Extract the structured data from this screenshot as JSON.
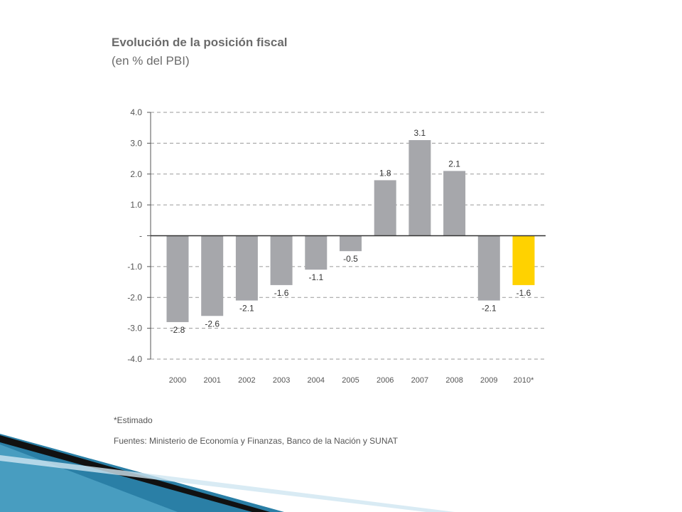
{
  "title": "Evolución de la posición fiscal",
  "subtitle": "(en % del PBI)",
  "note": "*Estimado",
  "source": "Fuentes: Ministerio de Economía y Finanzas, Banco de la Nación y SUNAT",
  "colors": {
    "bar": "#a6a7ab",
    "highlight": "#ffd200",
    "grid": "#9a9a9a",
    "axis": "#555555",
    "text": "#555555",
    "deco_dark": "#111111",
    "deco_blue": "#1f6f93"
  },
  "chart_data": {
    "type": "bar",
    "title": "Evolución de la posición fiscal",
    "subtitle": "(en % del PBI)",
    "categories": [
      "2000",
      "2001",
      "2002",
      "2003",
      "2004",
      "2005",
      "2006",
      "2007",
      "2008",
      "2009",
      "2010*"
    ],
    "values": [
      -2.8,
      -2.6,
      -2.1,
      -1.6,
      -1.1,
      -0.5,
      1.8,
      3.1,
      2.1,
      -2.1,
      -1.6
    ],
    "value_labels": [
      "-2.8",
      "-2.6",
      "-2.1",
      "-1.6",
      "-1.1",
      "-0.5",
      "1.8",
      "3.1",
      "2.1",
      "-2.1",
      "-1.6"
    ],
    "highlight_index": 10,
    "ylim": [
      -4,
      4
    ],
    "yticks": [
      4,
      3,
      2,
      1,
      0,
      -1,
      -2,
      -3,
      -4
    ],
    "ytick_labels": [
      "4.0",
      "3.0",
      "2.0",
      "1.0",
      "-",
      "-1.0",
      "-2.0",
      "-3.0",
      "-4.0"
    ],
    "grid": true,
    "legend": "none"
  }
}
